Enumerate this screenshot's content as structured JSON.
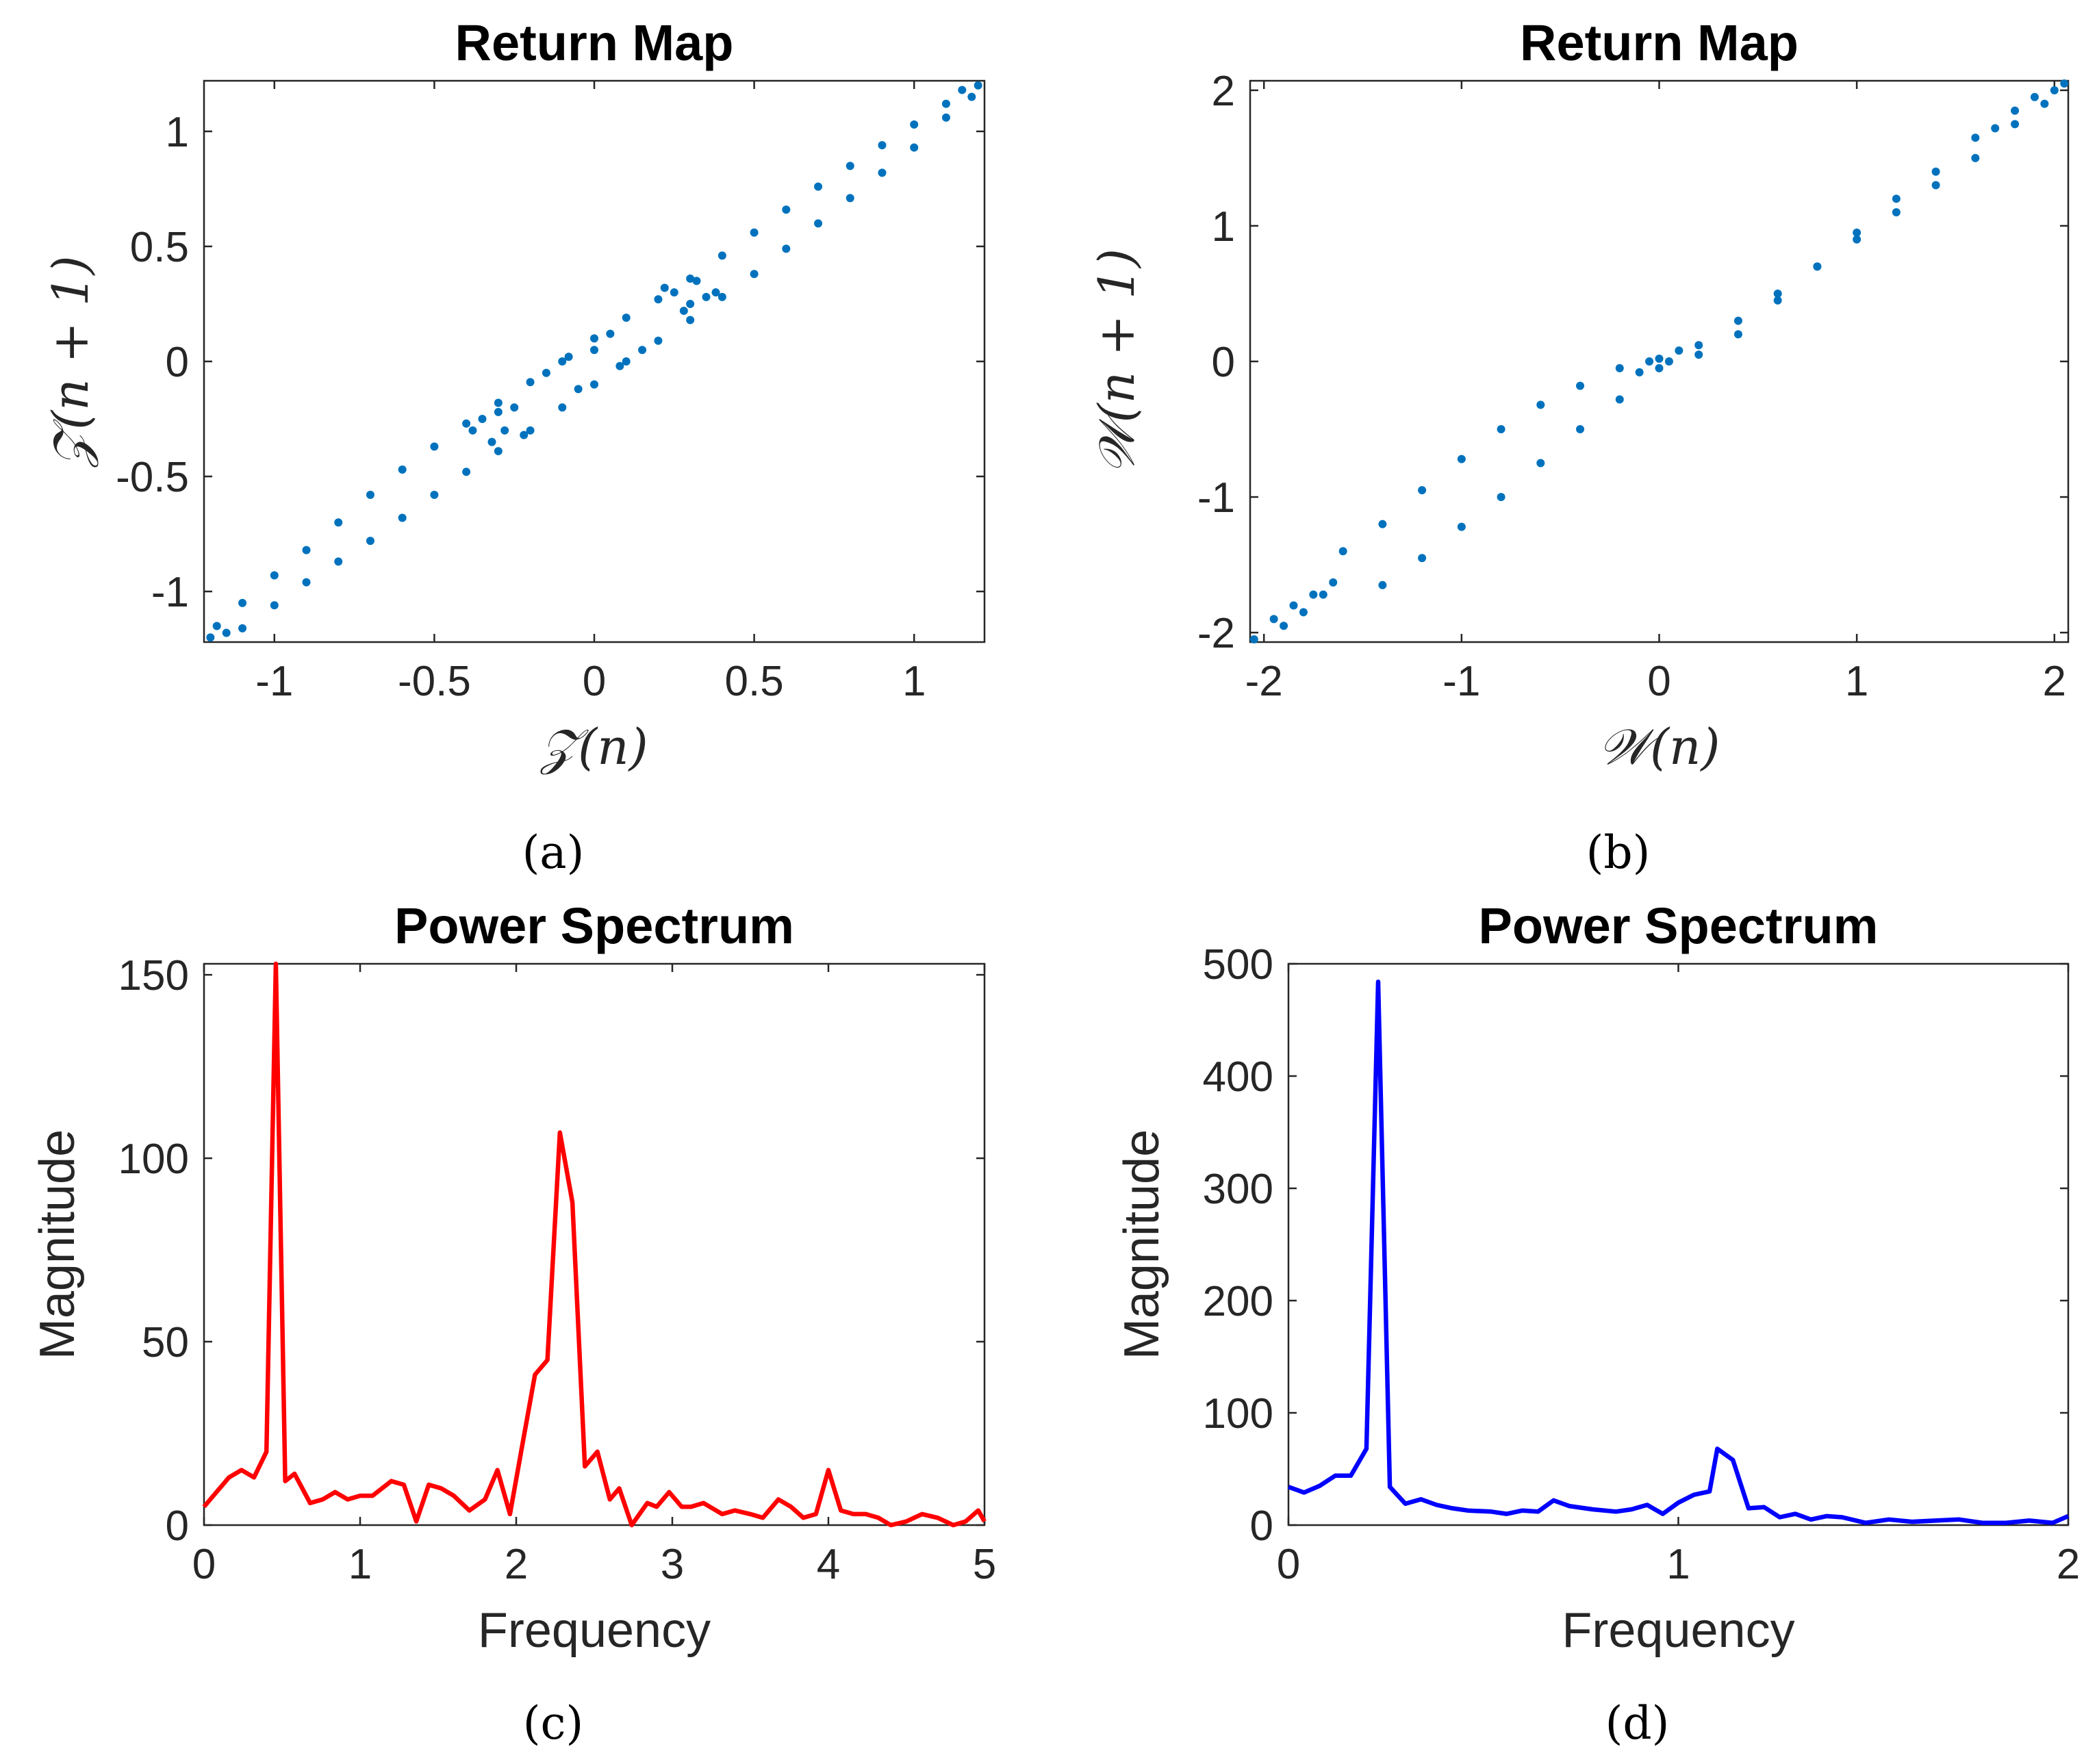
{
  "chart_data": [
    {
      "type": "scatter",
      "panel": "a",
      "caption": "(a)",
      "title": "Return Map",
      "xlabel": "𝒵(n)",
      "ylabel": "𝒵(n + 1)",
      "xlim": [
        -1.22,
        1.22
      ],
      "ylim": [
        -1.22,
        1.22
      ],
      "xticks": [
        -1,
        -0.5,
        0,
        0.5,
        1
      ],
      "xtick_labels": [
        "-1",
        "-0.5",
        "0",
        "0.5",
        "1"
      ],
      "yticks": [
        -1,
        -0.5,
        0,
        0.5,
        1
      ],
      "ytick_labels": [
        "-1",
        "-0.5",
        "0",
        "0.5",
        "1"
      ],
      "color": "#0072BD",
      "points": [
        [
          -1.2,
          -1.2
        ],
        [
          -1.1,
          -1.05
        ],
        [
          -1.0,
          -0.93
        ],
        [
          -0.9,
          -0.82
        ],
        [
          -0.8,
          -0.7
        ],
        [
          -0.7,
          -0.58
        ],
        [
          -0.6,
          -0.47
        ],
        [
          -0.5,
          -0.37
        ],
        [
          -0.4,
          -0.27
        ],
        [
          -0.3,
          -0.18
        ],
        [
          -0.2,
          -0.09
        ],
        [
          -0.1,
          0.0
        ],
        [
          0.0,
          0.1
        ],
        [
          0.1,
          0.19
        ],
        [
          0.2,
          0.27
        ],
        [
          0.3,
          0.36
        ],
        [
          0.4,
          0.46
        ],
        [
          0.5,
          0.56
        ],
        [
          0.6,
          0.66
        ],
        [
          0.7,
          0.76
        ],
        [
          0.8,
          0.85
        ],
        [
          0.9,
          0.94
        ],
        [
          1.0,
          1.03
        ],
        [
          1.1,
          1.12
        ],
        [
          1.2,
          1.2
        ],
        [
          -1.1,
          -1.16
        ],
        [
          -1.0,
          -1.06
        ],
        [
          -0.9,
          -0.96
        ],
        [
          -0.8,
          -0.87
        ],
        [
          -0.7,
          -0.78
        ],
        [
          -0.6,
          -0.68
        ],
        [
          -0.5,
          -0.58
        ],
        [
          -0.4,
          -0.48
        ],
        [
          -0.3,
          -0.39
        ],
        [
          -0.2,
          -0.3
        ],
        [
          -0.1,
          -0.2
        ],
        [
          0.0,
          -0.1
        ],
        [
          0.1,
          0.0
        ],
        [
          0.2,
          0.09
        ],
        [
          0.3,
          0.18
        ],
        [
          0.4,
          0.28
        ],
        [
          0.5,
          0.38
        ],
        [
          0.6,
          0.49
        ],
        [
          0.7,
          0.6
        ],
        [
          0.8,
          0.71
        ],
        [
          0.9,
          0.82
        ],
        [
          1.0,
          0.93
        ],
        [
          1.1,
          1.06
        ],
        [
          -0.35,
          -0.25
        ],
        [
          -0.32,
          -0.35
        ],
        [
          -0.28,
          -0.3
        ],
        [
          -0.25,
          -0.2
        ],
        [
          -0.22,
          -0.32
        ],
        [
          -0.38,
          -0.3
        ],
        [
          -0.3,
          -0.22
        ],
        [
          0.25,
          0.3
        ],
        [
          0.28,
          0.22
        ],
        [
          0.32,
          0.35
        ],
        [
          0.35,
          0.28
        ],
        [
          0.22,
          0.32
        ],
        [
          0.38,
          0.3
        ],
        [
          0.3,
          0.25
        ],
        [
          -0.15,
          -0.05
        ],
        [
          -0.05,
          -0.12
        ],
        [
          0.05,
          0.12
        ],
        [
          0.15,
          0.05
        ],
        [
          0.0,
          0.05
        ],
        [
          -0.08,
          0.02
        ],
        [
          0.08,
          -0.02
        ],
        [
          1.18,
          1.15
        ],
        [
          1.15,
          1.18
        ],
        [
          -1.18,
          -1.15
        ],
        [
          -1.15,
          -1.18
        ]
      ]
    },
    {
      "type": "scatter",
      "panel": "b",
      "caption": "(b)",
      "title": "Return Map",
      "xlabel": "𝒲(n)",
      "ylabel": "𝒲(n + 1)",
      "xlim": [
        -2.07,
        2.07
      ],
      "ylim": [
        -2.07,
        2.07
      ],
      "xticks": [
        -2,
        -1,
        0,
        1,
        2
      ],
      "xtick_labels": [
        "-2",
        "-1",
        "0",
        "1",
        "2"
      ],
      "yticks": [
        -2,
        -1,
        0,
        1,
        2
      ],
      "ytick_labels": [
        "-2",
        "-1",
        "0",
        "1",
        "2"
      ],
      "color": "#0072BD",
      "points": [
        [
          -2.05,
          -2.05
        ],
        [
          -1.95,
          -1.9
        ],
        [
          -1.85,
          -1.8
        ],
        [
          -1.75,
          -1.72
        ],
        [
          -1.65,
          -1.63
        ],
        [
          -1.9,
          -1.95
        ],
        [
          -1.8,
          -1.85
        ],
        [
          -1.7,
          -1.72
        ],
        [
          -1.6,
          -1.4
        ],
        [
          -1.4,
          -1.2
        ],
        [
          -1.2,
          -0.95
        ],
        [
          -1.0,
          -0.72
        ],
        [
          -0.8,
          -0.5
        ],
        [
          -0.6,
          -0.32
        ],
        [
          -0.4,
          -0.18
        ],
        [
          -0.2,
          -0.05
        ],
        [
          0.0,
          0.02
        ],
        [
          0.2,
          0.12
        ],
        [
          0.4,
          0.3
        ],
        [
          0.6,
          0.5
        ],
        [
          0.8,
          0.7
        ],
        [
          1.0,
          0.9
        ],
        [
          1.2,
          1.1
        ],
        [
          1.4,
          1.3
        ],
        [
          1.6,
          1.5
        ],
        [
          1.8,
          1.75
        ],
        [
          2.0,
          2.0
        ],
        [
          -1.4,
          -1.65
        ],
        [
          -1.2,
          -1.45
        ],
        [
          -1.0,
          -1.22
        ],
        [
          -0.8,
          -1.0
        ],
        [
          -0.6,
          -0.75
        ],
        [
          -0.4,
          -0.5
        ],
        [
          -0.2,
          -0.28
        ],
        [
          0.0,
          -0.05
        ],
        [
          0.2,
          0.05
        ],
        [
          0.4,
          0.2
        ],
        [
          0.6,
          0.45
        ],
        [
          0.8,
          0.7
        ],
        [
          1.0,
          0.95
        ],
        [
          1.2,
          1.2
        ],
        [
          1.4,
          1.4
        ],
        [
          1.6,
          1.65
        ],
        [
          1.7,
          1.72
        ],
        [
          1.8,
          1.85
        ],
        [
          1.9,
          1.95
        ],
        [
          1.95,
          1.9
        ],
        [
          2.05,
          2.05
        ],
        [
          0.1,
          0.08
        ],
        [
          -0.1,
          -0.08
        ],
        [
          0.05,
          0.0
        ],
        [
          -0.05,
          0.0
        ]
      ]
    },
    {
      "type": "line",
      "panel": "c",
      "caption": "(c)",
      "title": "Power Spectrum",
      "xlabel": "Frequency",
      "ylabel": "Magnitude",
      "xlim": [
        0,
        5
      ],
      "ylim": [
        0,
        153
      ],
      "xticks": [
        0,
        1,
        2,
        3,
        4,
        5
      ],
      "xtick_labels": [
        "0",
        "1",
        "2",
        "3",
        "4",
        "5"
      ],
      "yticks": [
        0,
        50,
        100,
        150
      ],
      "ytick_labels": [
        "0",
        "50",
        "100",
        "150"
      ],
      "color": "#FF0000",
      "x": [
        0.0,
        0.08,
        0.16,
        0.24,
        0.32,
        0.4,
        0.46,
        0.52,
        0.58,
        0.68,
        0.76,
        0.84,
        0.92,
        1.0,
        1.08,
        1.2,
        1.28,
        1.36,
        1.44,
        1.52,
        1.6,
        1.7,
        1.8,
        1.88,
        1.96,
        2.04,
        2.12,
        2.2,
        2.28,
        2.36,
        2.44,
        2.52,
        2.6,
        2.66,
        2.74,
        2.84,
        2.9,
        2.98,
        3.06,
        3.12,
        3.2,
        3.32,
        3.4,
        3.5,
        3.58,
        3.68,
        3.76,
        3.84,
        3.92,
        4.0,
        4.08,
        4.16,
        4.24,
        4.32,
        4.4,
        4.5,
        4.6,
        4.7,
        4.8,
        4.88,
        4.96,
        5.0
      ],
      "y": [
        5,
        9,
        13,
        15,
        13,
        20,
        153,
        12,
        14,
        6,
        7,
        9,
        7,
        8,
        8,
        12,
        11,
        1,
        11,
        10,
        8,
        4,
        7,
        15,
        3,
        22,
        41,
        45,
        107,
        88,
        16,
        20,
        7,
        10,
        0,
        6,
        5,
        9,
        5,
        5,
        6,
        3,
        4,
        3,
        2,
        7,
        5,
        2,
        3,
        15,
        4,
        3,
        3,
        2,
        0,
        1,
        3,
        2,
        0,
        1,
        4,
        1
      ]
    },
    {
      "type": "line",
      "panel": "d",
      "caption": "(d)",
      "title": "Power Spectrum",
      "xlabel": "Frequency",
      "ylabel": "Magnitude",
      "xlim": [
        0,
        2
      ],
      "ylim": [
        0,
        500
      ],
      "xticks": [
        0,
        1,
        2
      ],
      "xtick_labels": [
        "0",
        "1",
        "2"
      ],
      "yticks": [
        0,
        100,
        200,
        300,
        400,
        500
      ],
      "ytick_labels": [
        "0",
        "100",
        "200",
        "300",
        "400",
        "500"
      ],
      "color": "#0000FF",
      "x": [
        0.0,
        0.04,
        0.08,
        0.12,
        0.16,
        0.2,
        0.23,
        0.26,
        0.3,
        0.34,
        0.38,
        0.42,
        0.46,
        0.52,
        0.56,
        0.6,
        0.64,
        0.68,
        0.72,
        0.78,
        0.84,
        0.88,
        0.92,
        0.96,
        1.0,
        1.04,
        1.08,
        1.1,
        1.14,
        1.18,
        1.22,
        1.26,
        1.3,
        1.34,
        1.38,
        1.42,
        1.48,
        1.54,
        1.6,
        1.66,
        1.72,
        1.78,
        1.84,
        1.9,
        1.96,
        2.0
      ],
      "y": [
        34,
        29,
        35,
        44,
        44,
        68,
        484,
        34,
        19,
        23,
        18,
        15,
        13,
        12,
        10,
        13,
        12,
        22,
        17,
        14,
        12,
        14,
        18,
        10,
        20,
        27,
        30,
        68,
        58,
        15,
        16,
        7,
        10,
        5,
        8,
        7,
        2,
        5,
        3,
        4,
        5,
        2,
        2,
        4,
        2,
        8
      ]
    }
  ]
}
